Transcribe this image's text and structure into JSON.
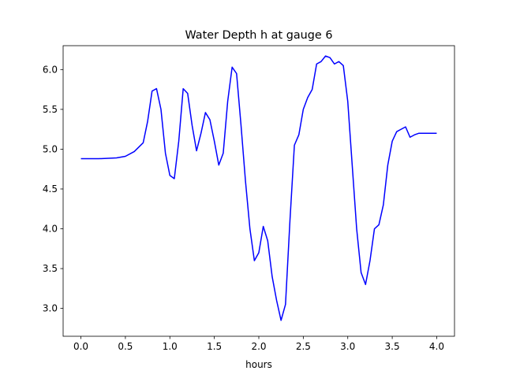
{
  "chart_data": {
    "type": "line",
    "title": "Water Depth h at gauge 6",
    "xlabel": "hours",
    "ylabel": "",
    "xlim": [
      -0.2,
      4.2
    ],
    "ylim": [
      2.65,
      6.3
    ],
    "xticks": [
      0.0,
      0.5,
      1.0,
      1.5,
      2.0,
      2.5,
      3.0,
      3.5,
      4.0
    ],
    "xtick_labels": [
      "0.0",
      "0.5",
      "1.0",
      "1.5",
      "2.0",
      "2.5",
      "3.0",
      "3.5",
      "4.0"
    ],
    "yticks": [
      3.0,
      3.5,
      4.0,
      4.5,
      5.0,
      5.5,
      6.0
    ],
    "ytick_labels": [
      "3.0",
      "3.5",
      "4.0",
      "4.5",
      "5.0",
      "5.5",
      "6.0"
    ],
    "grid": false,
    "series": [
      {
        "color": "#0000ff",
        "x": [
          0.0,
          0.2,
          0.4,
          0.5,
          0.6,
          0.7,
          0.75,
          0.8,
          0.85,
          0.9,
          0.95,
          1.0,
          1.05,
          1.1,
          1.15,
          1.2,
          1.25,
          1.3,
          1.35,
          1.4,
          1.45,
          1.5,
          1.55,
          1.6,
          1.65,
          1.7,
          1.75,
          1.8,
          1.85,
          1.9,
          1.95,
          2.0,
          2.05,
          2.1,
          2.15,
          2.2,
          2.25,
          2.3,
          2.35,
          2.4,
          2.45,
          2.5,
          2.55,
          2.6,
          2.65,
          2.7,
          2.75,
          2.8,
          2.85,
          2.9,
          2.95,
          3.0,
          3.05,
          3.1,
          3.15,
          3.2,
          3.25,
          3.3,
          3.35,
          3.4,
          3.45,
          3.5,
          3.55,
          3.6,
          3.65,
          3.7,
          3.75,
          3.8,
          3.85,
          3.9,
          3.95,
          4.0
        ],
        "y": [
          4.88,
          4.88,
          4.89,
          4.91,
          4.97,
          5.08,
          5.35,
          5.73,
          5.76,
          5.5,
          4.95,
          4.67,
          4.63,
          5.1,
          5.76,
          5.7,
          5.3,
          4.98,
          5.2,
          5.46,
          5.37,
          5.1,
          4.8,
          4.95,
          5.6,
          6.03,
          5.95,
          5.3,
          4.6,
          4.0,
          3.6,
          3.7,
          4.03,
          3.85,
          3.4,
          3.1,
          2.85,
          3.05,
          4.1,
          5.05,
          5.18,
          5.5,
          5.65,
          5.75,
          6.07,
          6.1,
          6.17,
          6.15,
          6.07,
          6.1,
          6.05,
          5.6,
          4.8,
          4.0,
          3.45,
          3.3,
          3.6,
          4.0,
          4.05,
          4.3,
          4.8,
          5.1,
          5.22,
          5.25,
          5.28,
          5.15,
          5.18,
          5.2,
          5.2,
          5.2,
          5.2,
          5.2
        ]
      }
    ]
  }
}
